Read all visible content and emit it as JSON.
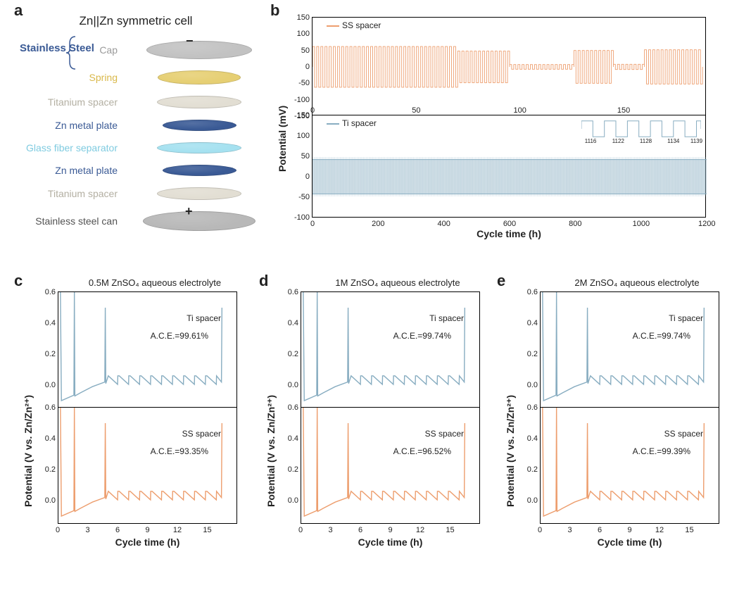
{
  "figure": {
    "panel_labels": {
      "a": "a",
      "b": "b",
      "c": "c",
      "d": "d",
      "e": "e"
    }
  },
  "panel_a": {
    "title": "Zn||Zn symmetric cell",
    "bracket_label": "Stainless Steel",
    "layers": [
      {
        "label": "Cap",
        "color": "#c2c2c2",
        "w": 150,
        "h": 26,
        "text_color": "#9a9a9a"
      },
      {
        "label": "Spring",
        "color": "#e6cf73",
        "w": 118,
        "h": 20,
        "text_color": "#d9b84a"
      },
      {
        "label": "Titanium spacer",
        "color": "#e2ded3",
        "w": 120,
        "h": 18,
        "text_color": "#b3afa2"
      },
      {
        "label": "Zn metal plate",
        "color": "#3a5a95",
        "w": 105,
        "h": 16,
        "text_color": "#3a5a95"
      },
      {
        "label": "Glass fiber separator",
        "color": "#a5e1f0",
        "w": 120,
        "h": 16,
        "text_color": "#7fcbe0"
      },
      {
        "label": "Zn metal plate",
        "color": "#3a5a95",
        "w": 105,
        "h": 16,
        "text_color": "#3a5a95"
      },
      {
        "label": "Titanium spacer",
        "color": "#e2ded3",
        "w": 120,
        "h": 18,
        "text_color": "#b3afa2"
      },
      {
        "label": "Stainless steel can",
        "color": "#b8b8b8",
        "w": 160,
        "h": 28,
        "text_color": "#525252"
      }
    ],
    "plus": "+",
    "minus": "−"
  },
  "panel_b": {
    "y_label": "Potential (mV)",
    "x_label": "Cycle time (h)",
    "top": {
      "legend": "SS spacer",
      "color": "#ed9e6e",
      "ylim": [
        -150,
        150
      ],
      "yticks": [
        -150,
        -100,
        -50,
        0,
        50,
        100,
        150
      ],
      "xlim": [
        0,
        190
      ],
      "xticks": [
        0,
        50,
        100,
        150
      ],
      "data": {
        "segments": [
          {
            "x0": 0,
            "x1": 70,
            "amp": 62,
            "period": 2
          },
          {
            "x0": 70,
            "x1": 95,
            "amp": 48,
            "period": 2
          },
          {
            "x0": 95,
            "x1": 126,
            "amp": 7,
            "period": 2
          },
          {
            "x0": 126,
            "x1": 145,
            "amp": 50,
            "period": 2
          },
          {
            "x0": 145,
            "x1": 160,
            "amp": 8,
            "period": 2
          },
          {
            "x0": 160,
            "x1": 188,
            "amp": 52,
            "period": 2
          }
        ]
      }
    },
    "bot": {
      "legend": "Ti spacer",
      "color": "#88adc1",
      "ylim": [
        -100,
        150
      ],
      "yticks": [
        -100,
        -50,
        0,
        50,
        100,
        150
      ],
      "xlim": [
        0,
        1200
      ],
      "xticks": [
        0,
        200,
        400,
        600,
        800,
        1000,
        1200
      ],
      "data": {
        "amp": 42,
        "period": 4
      },
      "inset": {
        "xticks": [
          1116,
          1122,
          1128,
          1134,
          1139
        ]
      }
    }
  },
  "cde_common": {
    "y_label": "Potential (V vs. Zn/Zn²⁺)",
    "x_label": "Cycle time (h)",
    "ylim": [
      -0.15,
      0.6
    ],
    "yticks": [
      "0.0",
      "0.2",
      "0.4",
      "0.6"
    ],
    "ytick_vals": [
      0.0,
      0.2,
      0.4,
      0.6
    ],
    "xlim": [
      0,
      18
    ],
    "xticks": [
      0,
      3,
      6,
      9,
      12,
      15
    ],
    "ti_color": "#88adc1",
    "ss_color": "#ed9e6e",
    "ti_label": "Ti spacer",
    "ss_label": "SS spacer",
    "profile": {
      "initial_plate_x": [
        0,
        1.0
      ],
      "initial_plate_y": [
        0.6,
        -0.09
      ],
      "spike1_x": 1.6,
      "spike1_h": 0.6,
      "recovery_x": [
        1.6,
        4.5
      ],
      "recovery_y": [
        -0.07,
        0.02
      ],
      "spike2_x": 4.7,
      "spike2_h": 0.5,
      "sawtooth_start": 5.0,
      "sawtooth_end": 16.0,
      "teeth": 10,
      "saw_low": 0.005,
      "saw_high": 0.06,
      "final_spike_x": 16.4,
      "final_spike_h": 0.5
    }
  },
  "panel_c": {
    "title": "0.5M ZnSO₄ aqueous electrolyte",
    "ti_ace": "A.C.E.=99.61%",
    "ss_ace": "A.C.E.=93.35%"
  },
  "panel_d": {
    "title": "1M ZnSO₄ aqueous electrolyte",
    "ti_ace": "A.C.E.=99.74%",
    "ss_ace": "A.C.E.=96.52%"
  },
  "panel_e": {
    "title": "2M ZnSO₄ aqueous electrolyte",
    "ti_ace": "A.C.E.=99.74%",
    "ss_ace": "A.C.E.=99.39%"
  }
}
